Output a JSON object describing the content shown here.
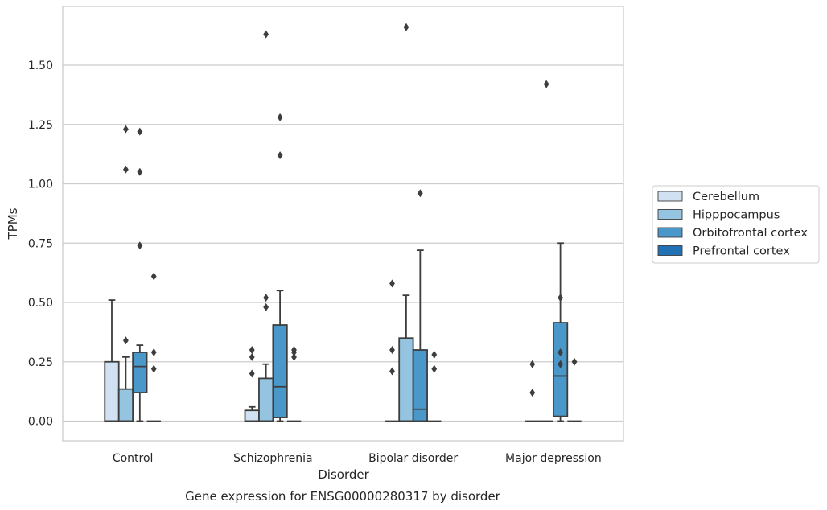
{
  "chart_data": {
    "type": "box",
    "title": "Gene expression for ENSG00000280317 by disorder",
    "xlabel": "Disorder",
    "ylabel": "TPMs",
    "ylim": [
      -0.08,
      1.78
    ],
    "yticks": [
      0.0,
      0.25,
      0.5,
      0.75,
      1.0,
      1.25,
      1.5
    ],
    "ytick_labels": [
      "0.00",
      "0.25",
      "0.50",
      "0.75",
      "1.00",
      "1.25",
      "1.50"
    ],
    "grid": true,
    "legend_position": "right",
    "categories": [
      "Control",
      "Schizophrenia",
      "Bipolar disorder",
      "Major depression"
    ],
    "series": [
      {
        "name": "Cerebellum",
        "color": "#d0e1f2",
        "boxes": [
          {
            "whislo": 0.0,
            "q1": 0.0,
            "med": 0.0,
            "q3": 0.25,
            "whishi": 0.51,
            "fliers": []
          },
          {
            "whislo": 0.0,
            "q1": 0.0,
            "med": 0.0,
            "q3": 0.045,
            "whishi": 0.06,
            "fliers": [
              0.2,
              0.27,
              0.3
            ]
          },
          {
            "whislo": 0.0,
            "q1": 0.0,
            "med": 0.0,
            "q3": 0.0,
            "whishi": 0.0,
            "fliers": [
              0.21,
              0.3,
              0.58
            ]
          },
          {
            "whislo": 0.0,
            "q1": 0.0,
            "med": 0.0,
            "q3": 0.0,
            "whishi": 0.0,
            "fliers": [
              0.12,
              0.24
            ]
          }
        ]
      },
      {
        "name": "Hipppocampus",
        "color": "#94c4df",
        "boxes": [
          {
            "whislo": 0.0,
            "q1": 0.0,
            "med": 0.0,
            "q3": 0.135,
            "whishi": 0.27,
            "fliers": [
              0.34,
              1.06,
              1.23
            ]
          },
          {
            "whislo": 0.0,
            "q1": 0.0,
            "med": 0.0,
            "q3": 0.18,
            "whishi": 0.24,
            "fliers": [
              0.48,
              0.52,
              1.63
            ]
          },
          {
            "whislo": 0.0,
            "q1": 0.0,
            "med": 0.0,
            "q3": 0.35,
            "whishi": 0.53,
            "fliers": [
              1.66
            ]
          },
          {
            "whislo": 0.0,
            "q1": 0.0,
            "med": 0.0,
            "q3": 0.0,
            "whishi": 0.0,
            "fliers": [
              1.42
            ]
          }
        ]
      },
      {
        "name": "Orbitofrontal cortex",
        "color": "#4a98c9",
        "boxes": [
          {
            "whislo": 0.0,
            "q1": 0.12,
            "med": 0.23,
            "q3": 0.29,
            "whishi": 0.32,
            "fliers": [
              0.74,
              1.05,
              1.22
            ]
          },
          {
            "whislo": 0.0,
            "q1": 0.015,
            "med": 0.145,
            "q3": 0.405,
            "whishi": 0.55,
            "fliers": [
              1.12,
              1.28
            ]
          },
          {
            "whislo": 0.0,
            "q1": 0.0,
            "med": 0.05,
            "q3": 0.3,
            "whishi": 0.72,
            "fliers": [
              0.96
            ]
          },
          {
            "whislo": 0.0,
            "q1": 0.02,
            "med": 0.19,
            "q3": 0.415,
            "whishi": 0.75,
            "fliers": [
              0.24,
              0.29,
              0.52
            ]
          }
        ]
      },
      {
        "name": "Prefrontal cortex",
        "color": "#2171b5",
        "boxes": [
          {
            "whislo": 0.0,
            "q1": 0.0,
            "med": 0.0,
            "q3": 0.0,
            "whishi": 0.0,
            "fliers": [
              0.22,
              0.29,
              0.61
            ]
          },
          {
            "whislo": 0.0,
            "q1": 0.0,
            "med": 0.0,
            "q3": 0.0,
            "whishi": 0.0,
            "fliers": [
              0.27,
              0.29,
              0.3
            ]
          },
          {
            "whislo": 0.0,
            "q1": 0.0,
            "med": 0.0,
            "q3": 0.0,
            "whishi": 0.0,
            "fliers": [
              0.22,
              0.28
            ]
          },
          {
            "whislo": 0.0,
            "q1": 0.0,
            "med": 0.0,
            "q3": 0.0,
            "whishi": 0.0,
            "fliers": [
              0.25
            ]
          }
        ]
      }
    ]
  }
}
